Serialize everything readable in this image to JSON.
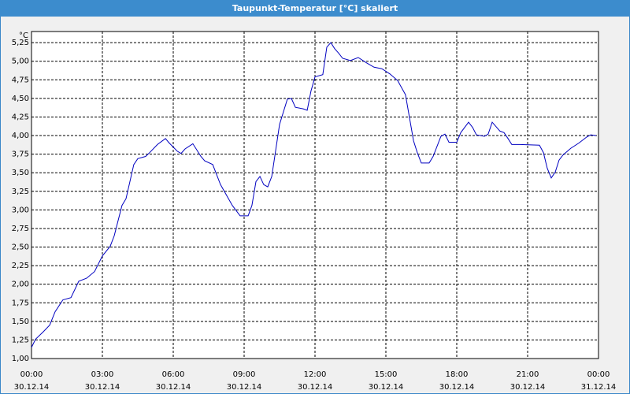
{
  "chart_data": {
    "type": "line",
    "title": "Taupunkt-Temperatur [°C] skaliert",
    "y_unit": "°C",
    "x": [
      0,
      0.17,
      0.5,
      0.77,
      1,
      1.33,
      1.67,
      2,
      2.33,
      2.67,
      3,
      3.33,
      3.5,
      3.83,
      4,
      4.33,
      4.5,
      4.83,
      5,
      5.33,
      5.67,
      5.83,
      6.17,
      6.33,
      6.5,
      6.83,
      7.17,
      7.33,
      7.67,
      8,
      8.5,
      8.83,
      9.17,
      9.33,
      9.5,
      9.67,
      9.83,
      10,
      10.17,
      10.5,
      10.83,
      11,
      11.17,
      11.5,
      11.67,
      11.83,
      12,
      12.33,
      12.5,
      12.67,
      12.83,
      13,
      13.17,
      13.5,
      13.83,
      14.17,
      14.5,
      14.83,
      15.17,
      15.5,
      15.83,
      16.17,
      16.33,
      16.5,
      16.83,
      17,
      17.33,
      17.5,
      17.67,
      18,
      18.17,
      18.5,
      18.67,
      18.83,
      19.17,
      19.33,
      19.5,
      19.83,
      20,
      20.17,
      20.33,
      20.67,
      21.5,
      21.67,
      21.83,
      22,
      22.17,
      22.33,
      22.5,
      22.83,
      23.17,
      23.5,
      23.67,
      23.9
    ],
    "series": [
      {
        "name": "Taupunkt-Temperatur",
        "color": "#0000c0",
        "values": [
          1.15,
          1.26,
          1.36,
          1.45,
          1.63,
          1.79,
          1.82,
          2.04,
          2.08,
          2.17,
          2.38,
          2.51,
          2.65,
          3.06,
          3.15,
          3.61,
          3.69,
          3.72,
          3.77,
          3.88,
          3.96,
          3.9,
          3.79,
          3.76,
          3.82,
          3.89,
          3.72,
          3.66,
          3.61,
          3.34,
          3.06,
          2.92,
          2.92,
          3.06,
          3.38,
          3.45,
          3.34,
          3.31,
          3.45,
          4.15,
          4.49,
          4.5,
          4.38,
          4.36,
          4.34,
          4.6,
          4.79,
          4.82,
          5.19,
          5.25,
          5.17,
          5.11,
          5.04,
          5.01,
          5.05,
          4.98,
          4.92,
          4.9,
          4.83,
          4.74,
          4.55,
          3.93,
          3.77,
          3.63,
          3.63,
          3.72,
          3.99,
          4.02,
          3.91,
          3.91,
          4.04,
          4.18,
          4.11,
          4.01,
          3.99,
          4.02,
          4.18,
          4.06,
          4.04,
          3.96,
          3.88,
          3.88,
          3.87,
          3.77,
          3.56,
          3.43,
          3.51,
          3.67,
          3.74,
          3.83,
          3.9,
          3.98,
          4.01,
          4.0
        ]
      }
    ],
    "xlim": [
      0,
      24
    ],
    "xticks": [
      {
        "value": 0,
        "label": "00:00"
      },
      {
        "value": 3,
        "label": "03:00"
      },
      {
        "value": 6,
        "label": "06:00"
      },
      {
        "value": 9,
        "label": "09:00"
      },
      {
        "value": 12,
        "label": "12:00"
      },
      {
        "value": 15,
        "label": "15:00"
      },
      {
        "value": 18,
        "label": "18:00"
      },
      {
        "value": 21,
        "label": "21:00"
      },
      {
        "value": 24,
        "label": "00:00"
      }
    ],
    "xtick_dates": [
      "30.12.14",
      "30.12.14",
      "30.12.14",
      "30.12.14",
      "30.12.14",
      "30.12.14",
      "30.12.14",
      "30.12.14",
      "31.12.14"
    ],
    "ylim": [
      1.0,
      5.4
    ],
    "yticks": [
      {
        "value": 1.0,
        "label": "1,00"
      },
      {
        "value": 1.25,
        "label": "1,25"
      },
      {
        "value": 1.5,
        "label": "1,50"
      },
      {
        "value": 1.75,
        "label": "1,75"
      },
      {
        "value": 2.0,
        "label": "2,00"
      },
      {
        "value": 2.25,
        "label": "2,25"
      },
      {
        "value": 2.5,
        "label": "2,50"
      },
      {
        "value": 2.75,
        "label": "2,75"
      },
      {
        "value": 3.0,
        "label": "3,00"
      },
      {
        "value": 3.25,
        "label": "3,25"
      },
      {
        "value": 3.5,
        "label": "3,50"
      },
      {
        "value": 3.75,
        "label": "3,75"
      },
      {
        "value": 4.0,
        "label": "4,00"
      },
      {
        "value": 4.25,
        "label": "4,25"
      },
      {
        "value": 4.5,
        "label": "4,50"
      },
      {
        "value": 4.75,
        "label": "4,75"
      },
      {
        "value": 5.0,
        "label": "5,00"
      },
      {
        "value": 5.25,
        "label": "5,25"
      }
    ],
    "grid": true
  }
}
